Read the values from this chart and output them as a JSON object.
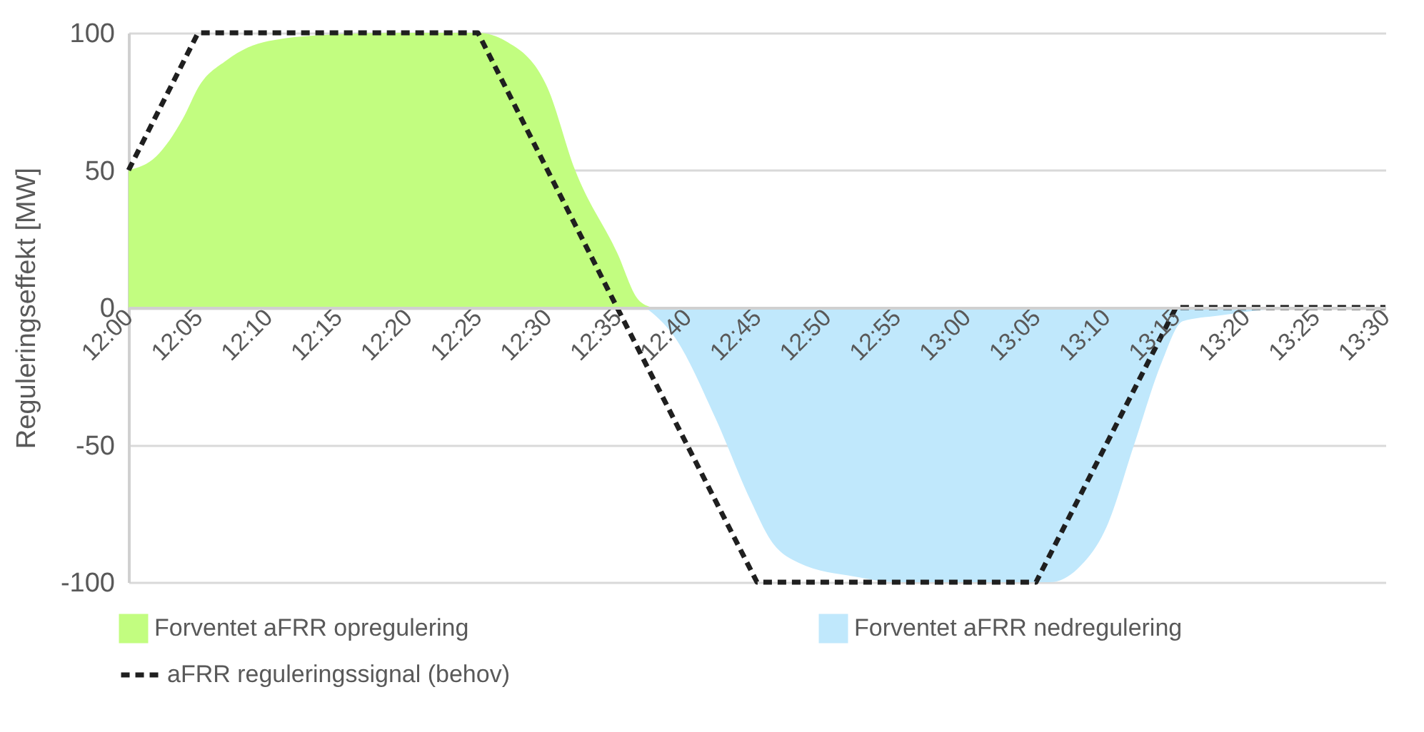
{
  "chart_data": {
    "type": "area",
    "ylabel": "Reguleringseffekt [MW]",
    "xlim": [
      12.0,
      13.5
    ],
    "ylim": [
      -100,
      100
    ],
    "yticks": [
      -100,
      -50,
      0,
      50,
      100
    ],
    "xticks": [
      {
        "value": 12.0,
        "label": "12:00"
      },
      {
        "value": 12.0833,
        "label": "12:05"
      },
      {
        "value": 12.1667,
        "label": "12:10"
      },
      {
        "value": 12.25,
        "label": "12:15"
      },
      {
        "value": 12.3333,
        "label": "12:20"
      },
      {
        "value": 12.4167,
        "label": "12:25"
      },
      {
        "value": 12.5,
        "label": "12:30"
      },
      {
        "value": 12.5833,
        "label": "12:35"
      },
      {
        "value": 12.6667,
        "label": "12:40"
      },
      {
        "value": 12.75,
        "label": "12:45"
      },
      {
        "value": 12.8333,
        "label": "12:50"
      },
      {
        "value": 12.9167,
        "label": "12:55"
      },
      {
        "value": 13.0,
        "label": "13:00"
      },
      {
        "value": 13.0833,
        "label": "13:05"
      },
      {
        "value": 13.1667,
        "label": "13:10"
      },
      {
        "value": 13.25,
        "label": "13:15"
      },
      {
        "value": 13.3333,
        "label": "13:20"
      },
      {
        "value": 13.4167,
        "label": "13:25"
      },
      {
        "value": 13.5,
        "label": "13:30"
      }
    ],
    "grid": "y",
    "legend": "bottom",
    "series": [
      {
        "name": "Forventet aFRR opregulering",
        "color": "#c2fd80",
        "x": [
          12.0,
          12.033,
          12.067,
          12.083,
          12.117,
          12.167,
          12.25,
          12.333,
          12.417,
          12.45,
          12.5,
          12.533,
          12.583,
          12.608,
          12.625
        ],
        "values": [
          50,
          55,
          70,
          80,
          90,
          97,
          99.5,
          100,
          100,
          97,
          80,
          50,
          20,
          3,
          0
        ]
      },
      {
        "name": "Forventet aFRR nedregulering",
        "color": "#c0e8fc",
        "x": [
          12.617,
          12.65,
          12.7,
          12.742,
          12.767,
          12.8,
          12.867,
          12.917,
          13.1,
          13.133,
          13.167,
          13.2,
          13.233,
          13.258,
          13.3,
          13.367,
          13.417,
          13.5
        ],
        "values": [
          0,
          -10,
          -40,
          -70,
          -85,
          -93,
          -98,
          -100,
          -100,
          -95,
          -80,
          -50,
          -20,
          -5,
          -3,
          -0.5,
          0,
          0
        ]
      },
      {
        "name": "aFRR reguleringssignal (behov)",
        "type": "line",
        "color": "#1f1f1f",
        "line_style": "dashed",
        "marker": "none",
        "x": [
          12.0,
          12.083,
          12.417,
          12.583,
          12.75,
          13.083,
          13.25,
          13.5
        ],
        "values": [
          50,
          100,
          100,
          0,
          -100,
          -100,
          0,
          0
        ]
      }
    ]
  }
}
